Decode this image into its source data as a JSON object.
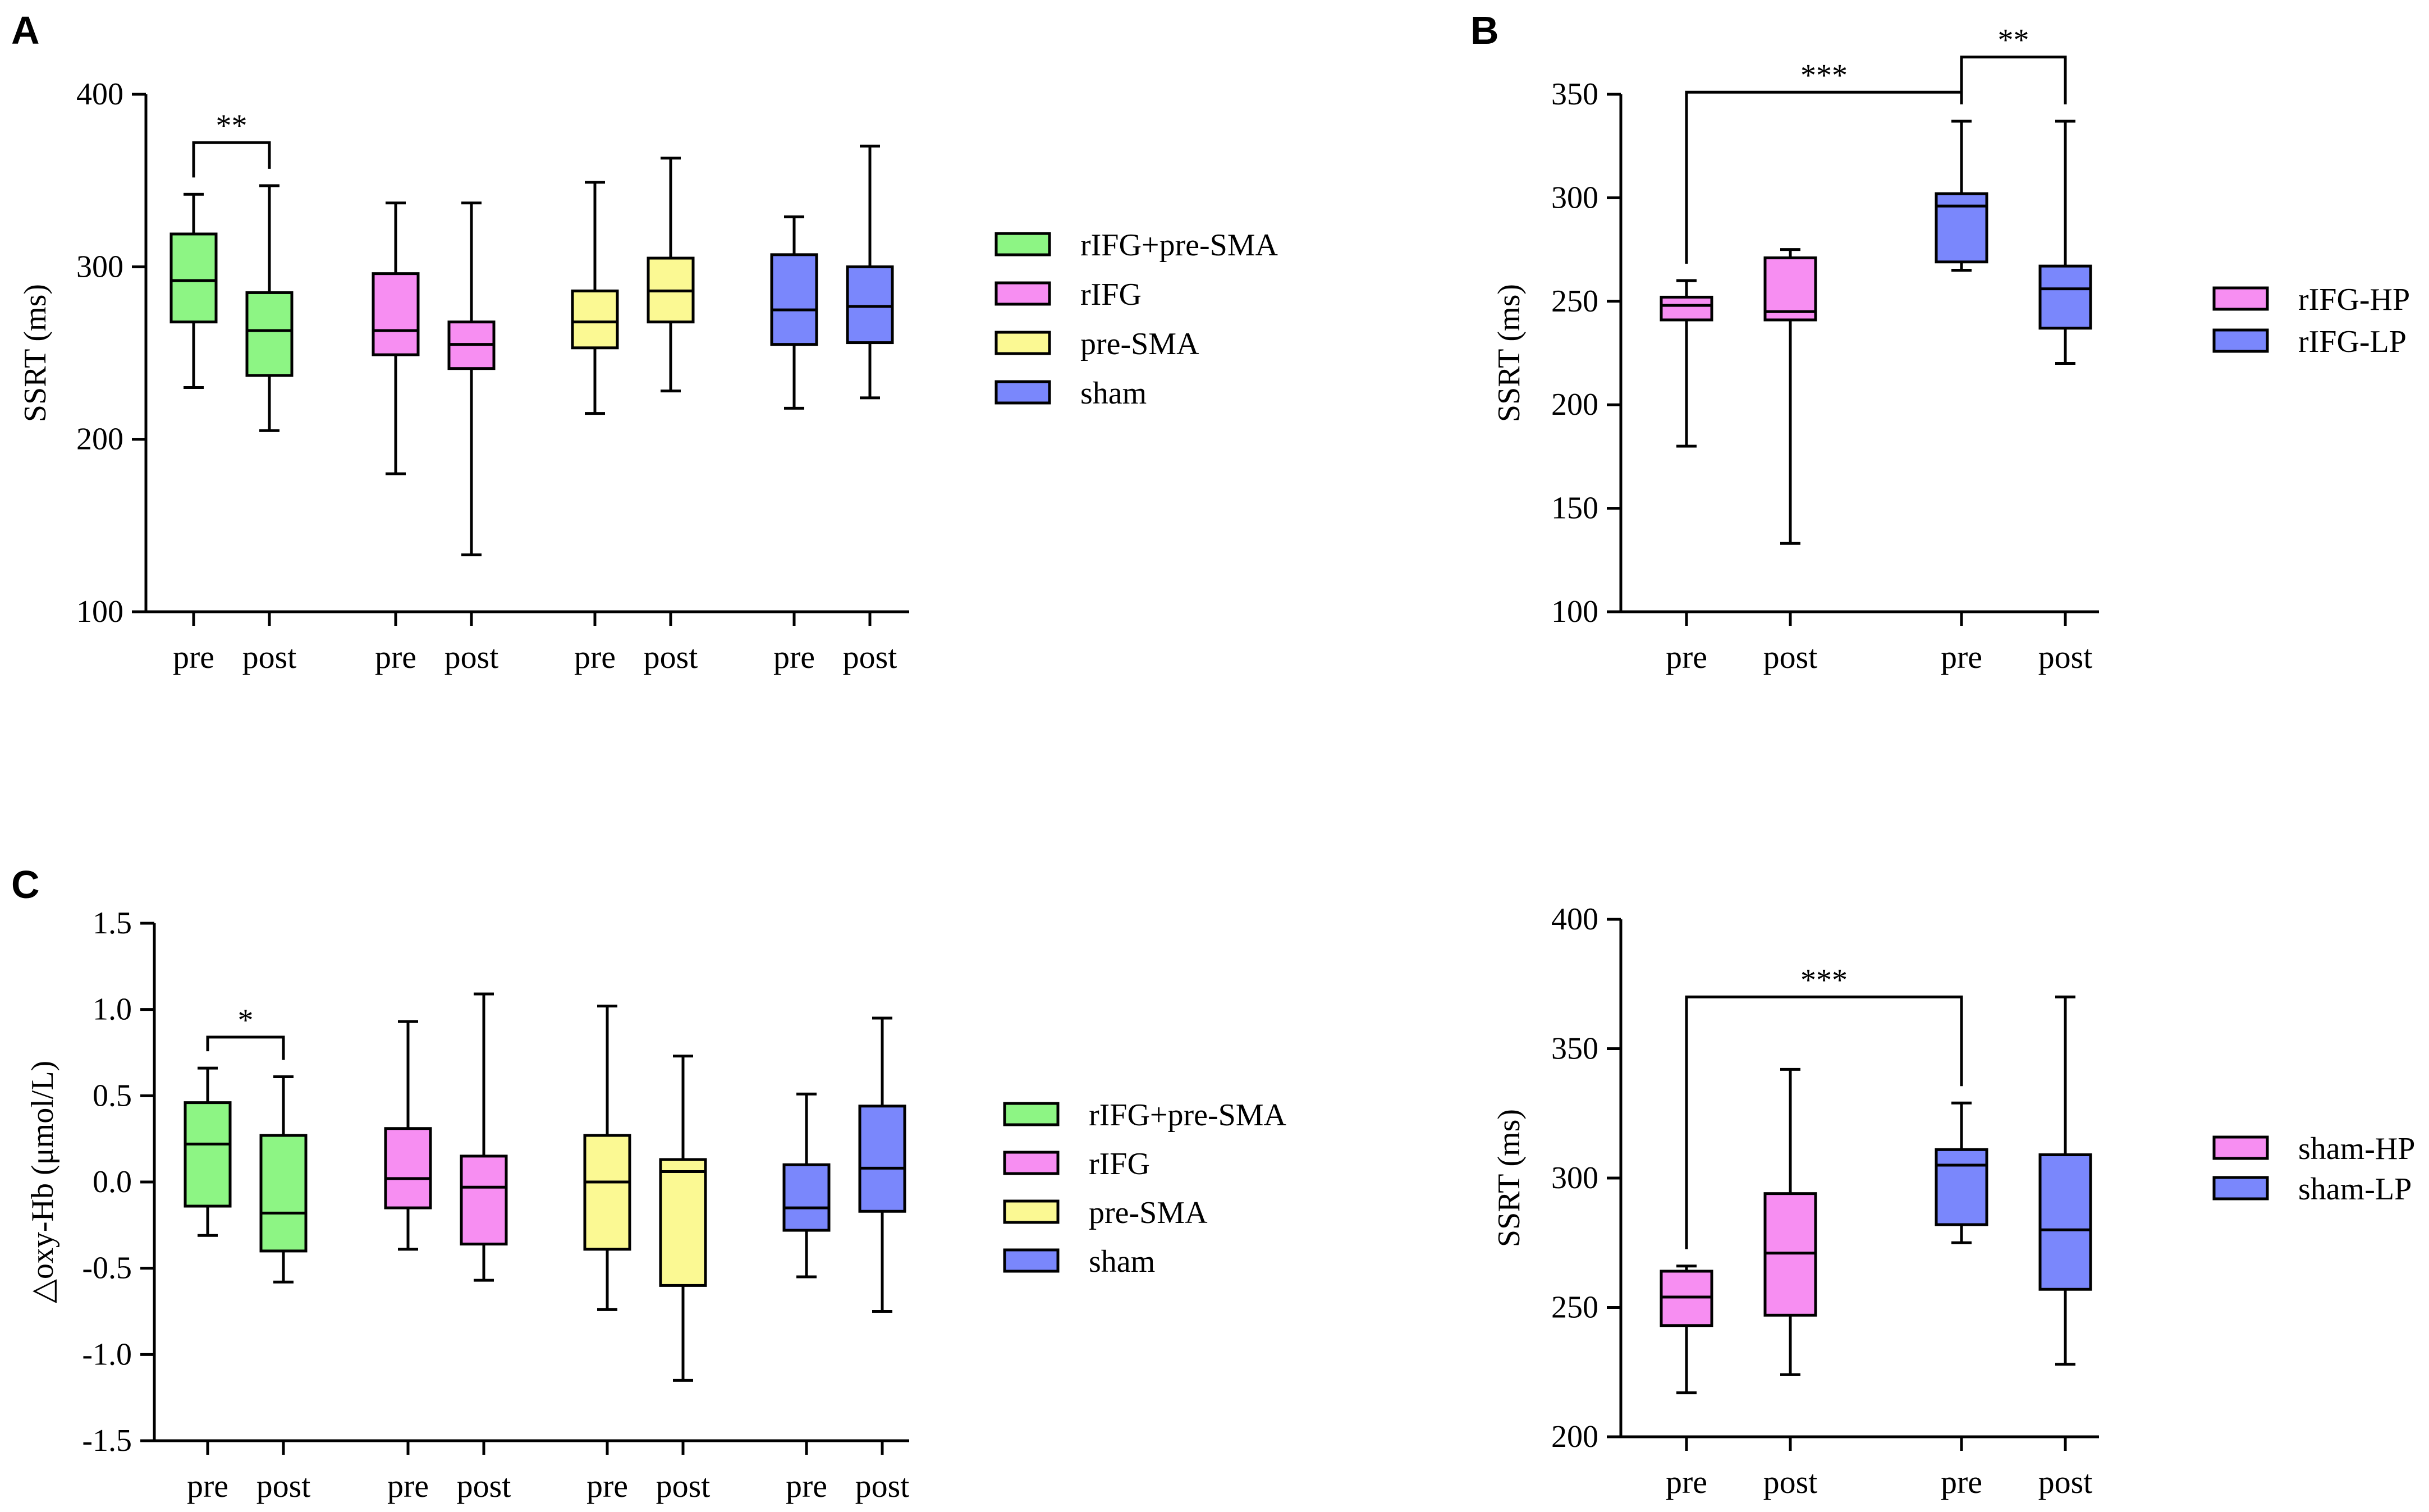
{
  "colors": {
    "green": "#8df584",
    "pink": "#f78ef2",
    "yellow": "#fbf993",
    "blue": "#7a87fc"
  },
  "chart_data": [
    {
      "type": "box",
      "panel_label": "A",
      "ylabel": "SSRT (ms)",
      "ylim": [
        100,
        400
      ],
      "yticks": [
        100,
        200,
        300,
        400
      ],
      "ytick_labels": [
        "100",
        "200",
        "300",
        "400"
      ],
      "legend": [
        {
          "label": "rIFG+pre-SMA",
          "color": "#8df584"
        },
        {
          "label": "rIFG",
          "color": "#f78ef2"
        },
        {
          "label": "pre-SMA",
          "color": "#fbf993"
        },
        {
          "label": "sham",
          "color": "#7a87fc"
        }
      ],
      "boxes": [
        {
          "label": "pre",
          "color": "#8df584",
          "min": 230,
          "q1": 268,
          "median": 292,
          "q3": 319,
          "max": 342
        },
        {
          "label": "post",
          "color": "#8df584",
          "min": 205,
          "q1": 237,
          "median": 263,
          "q3": 285,
          "max": 347
        },
        {
          "label": "pre",
          "color": "#f78ef2",
          "min": 180,
          "q1": 249,
          "median": 263,
          "q3": 296,
          "max": 337
        },
        {
          "label": "post",
          "color": "#f78ef2",
          "min": 133,
          "q1": 241,
          "median": 255,
          "q3": 268,
          "max": 337
        },
        {
          "label": "pre",
          "color": "#fbf993",
          "min": 215,
          "q1": 253,
          "median": 268,
          "q3": 286,
          "max": 349
        },
        {
          "label": "post",
          "color": "#fbf993",
          "min": 228,
          "q1": 268,
          "median": 286,
          "q3": 305,
          "max": 363
        },
        {
          "label": "pre",
          "color": "#7a87fc",
          "min": 218,
          "q1": 255,
          "median": 275,
          "q3": 307,
          "max": 329
        },
        {
          "label": "post",
          "color": "#7a87fc",
          "min": 224,
          "q1": 256,
          "median": 277,
          "q3": 300,
          "max": 370
        }
      ],
      "significance": [
        {
          "from": 0,
          "to": 1,
          "y": 372,
          "label": "**"
        }
      ]
    },
    {
      "type": "box",
      "panel_label": "B",
      "ylabel": "SSRT (ms)",
      "ylim": [
        100,
        350
      ],
      "yticks": [
        100,
        150,
        200,
        250,
        300,
        350
      ],
      "ytick_labels": [
        "100",
        "150",
        "200",
        "250",
        "300",
        "350"
      ],
      "legend": [
        {
          "label": "rIFG-HP",
          "color": "#f78ef2"
        },
        {
          "label": "rIFG-LP",
          "color": "#7a87fc"
        }
      ],
      "boxes": [
        {
          "label": "pre",
          "color": "#f78ef2",
          "min": 180,
          "q1": 241,
          "median": 248,
          "q3": 252,
          "max": 260
        },
        {
          "label": "post",
          "color": "#f78ef2",
          "min": 133,
          "q1": 241,
          "median": 245,
          "q3": 271,
          "max": 275
        },
        {
          "label": "pre",
          "color": "#7a87fc",
          "min": 265,
          "q1": 269,
          "median": 296,
          "q3": 302,
          "max": 337
        },
        {
          "label": "post",
          "color": "#7a87fc",
          "min": 220,
          "q1": 237,
          "median": 256,
          "q3": 267,
          "max": 337
        }
      ],
      "significance": [
        {
          "from": 0,
          "to": 2,
          "y": 351,
          "label": "***"
        },
        {
          "from": 2,
          "to": 3,
          "y": 368,
          "label": "**"
        }
      ]
    },
    {
      "type": "box",
      "panel_label": "C",
      "ylabel": "△oxy-Hb (μmol/L)",
      "ylim": [
        -1.5,
        1.5
      ],
      "yticks": [
        -1.5,
        -1.0,
        -0.5,
        0.0,
        0.5,
        1.0,
        1.5
      ],
      "ytick_labels": [
        "-1.5",
        "-1.0",
        "-0.5",
        "0.0",
        "0.5",
        "1.0",
        "1.5"
      ],
      "legend": [
        {
          "label": "rIFG+pre-SMA",
          "color": "#8df584"
        },
        {
          "label": "rIFG",
          "color": "#f78ef2"
        },
        {
          "label": "pre-SMA",
          "color": "#fbf993"
        },
        {
          "label": "sham",
          "color": "#7a87fc"
        }
      ],
      "boxes": [
        {
          "label": "pre",
          "color": "#8df584",
          "min": -0.31,
          "q1": -0.14,
          "median": 0.22,
          "q3": 0.46,
          "max": 0.66
        },
        {
          "label": "post",
          "color": "#8df584",
          "min": -0.58,
          "q1": -0.4,
          "median": -0.18,
          "q3": 0.27,
          "max": 0.61
        },
        {
          "label": "pre",
          "color": "#f78ef2",
          "min": -0.39,
          "q1": -0.15,
          "median": 0.02,
          "q3": 0.31,
          "max": 0.93
        },
        {
          "label": "post",
          "color": "#f78ef2",
          "min": -0.57,
          "q1": -0.36,
          "median": -0.03,
          "q3": 0.15,
          "max": 1.09
        },
        {
          "label": "pre",
          "color": "#fbf993",
          "min": -0.74,
          "q1": -0.39,
          "median": 0.0,
          "q3": 0.27,
          "max": 1.02
        },
        {
          "label": "post",
          "color": "#fbf993",
          "min": -1.15,
          "q1": -0.6,
          "median": 0.06,
          "q3": 0.13,
          "max": 0.73
        },
        {
          "label": "pre",
          "color": "#7a87fc",
          "min": -0.55,
          "q1": -0.28,
          "median": -0.15,
          "q3": 0.1,
          "max": 0.51
        },
        {
          "label": "post",
          "color": "#7a87fc",
          "min": -0.75,
          "q1": -0.17,
          "median": 0.08,
          "q3": 0.44,
          "max": 0.95
        }
      ],
      "significance": [
        {
          "from": 0,
          "to": 1,
          "y": 0.84,
          "label": "*"
        }
      ]
    },
    {
      "type": "box",
      "panel_label": "",
      "ylabel": "SSRT (ms)",
      "ylim": [
        200,
        400
      ],
      "yticks": [
        200,
        250,
        300,
        350,
        400
      ],
      "ytick_labels": [
        "200",
        "250",
        "300",
        "350",
        "400"
      ],
      "legend": [
        {
          "label": "sham-HP",
          "color": "#f78ef2"
        },
        {
          "label": "sham-LP",
          "color": "#7a87fc"
        }
      ],
      "boxes": [
        {
          "label": "pre",
          "color": "#f78ef2",
          "min": 217,
          "q1": 243,
          "median": 254,
          "q3": 264,
          "max": 266
        },
        {
          "label": "post",
          "color": "#f78ef2",
          "min": 224,
          "q1": 247,
          "median": 271,
          "q3": 294,
          "max": 342
        },
        {
          "label": "pre",
          "color": "#7a87fc",
          "min": 275,
          "q1": 282,
          "median": 305,
          "q3": 311,
          "max": 329
        },
        {
          "label": "post",
          "color": "#7a87fc",
          "min": 228,
          "q1": 257,
          "median": 280,
          "q3": 309,
          "max": 370
        }
      ],
      "significance": [
        {
          "from": 0,
          "to": 2,
          "y": 370,
          "label": "***"
        }
      ]
    }
  ]
}
